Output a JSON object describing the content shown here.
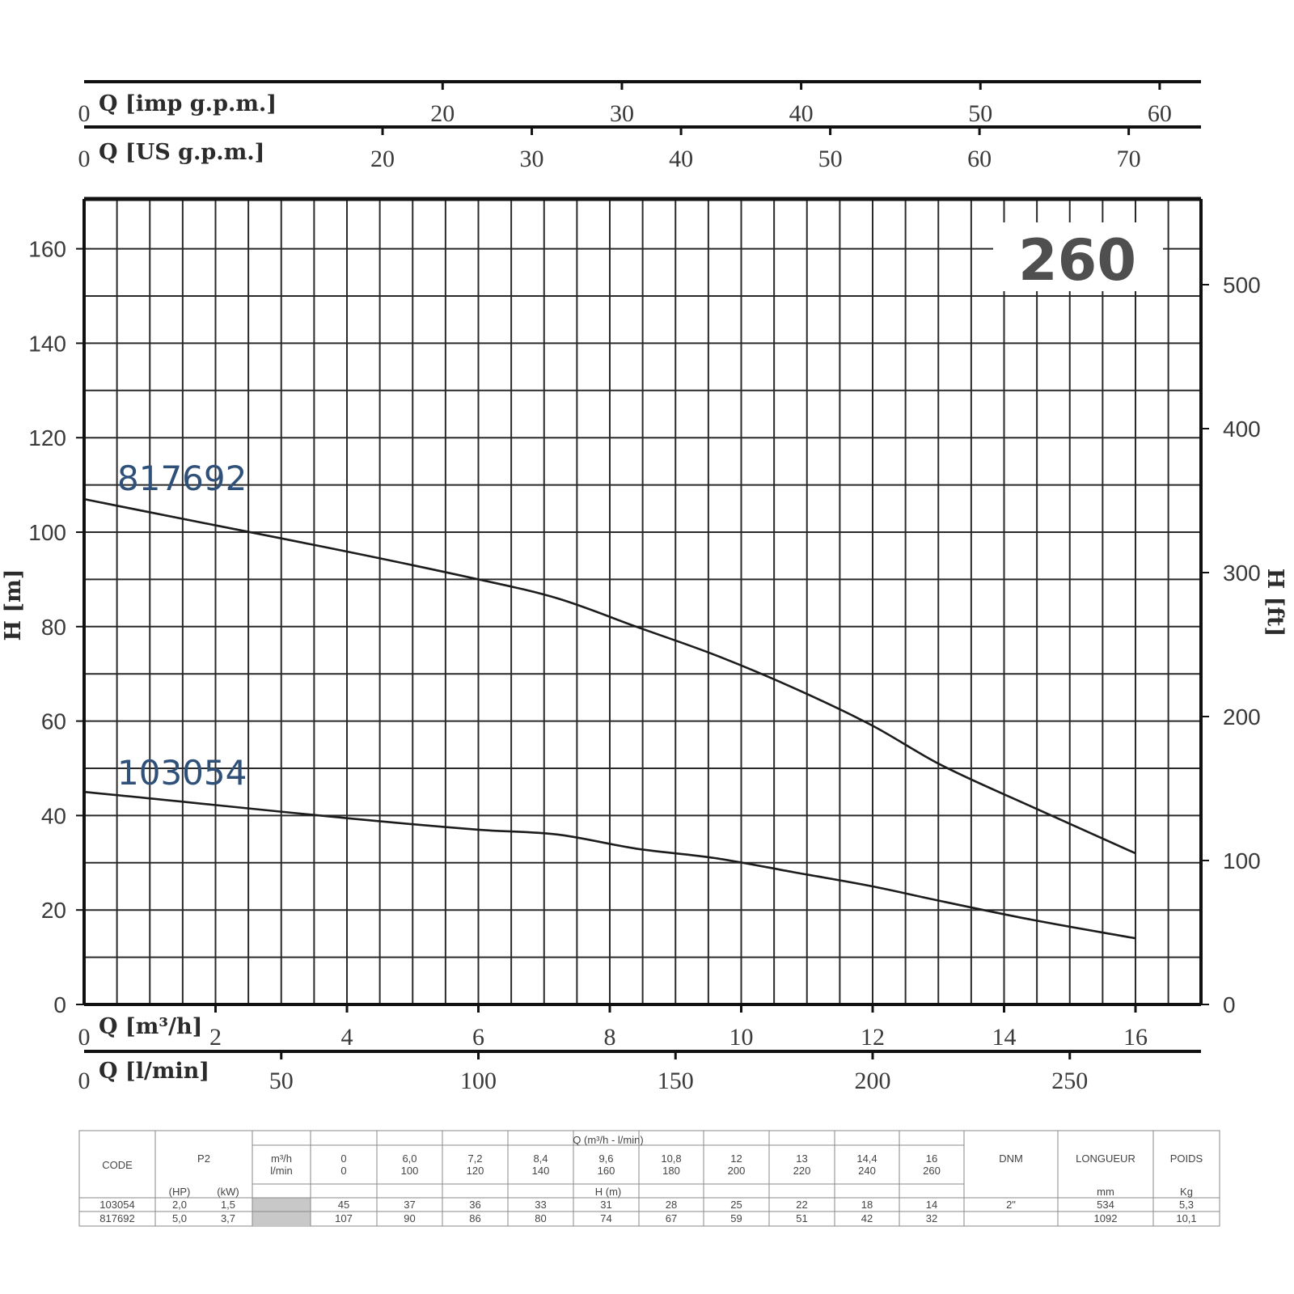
{
  "chart_data": {
    "type": "line",
    "model": "260",
    "x_axes": {
      "imp_gpm": {
        "label": "Q [imp g.p.m.]",
        "zero": "0",
        "ticks": [
          "20",
          "30",
          "40",
          "50",
          "60"
        ]
      },
      "us_gpm": {
        "label": "Q [US g.p.m.]",
        "zero": "0",
        "ticks": [
          "20",
          "30",
          "40",
          "50",
          "60",
          "70"
        ]
      },
      "m3h": {
        "label": "Q [m³/h]",
        "zero": "0",
        "ticks": [
          "2",
          "4",
          "6",
          "8",
          "10",
          "12",
          "14",
          "16"
        ]
      },
      "lmin": {
        "label": "Q [l/min]",
        "zero": "0",
        "ticks": [
          "50",
          "100",
          "150",
          "200",
          "250"
        ]
      }
    },
    "y_left": {
      "label": "H [m]",
      "ticks": [
        "0",
        "20",
        "40",
        "60",
        "80",
        "100",
        "120",
        "140",
        "160"
      ]
    },
    "y_right": {
      "label": "H [ft]",
      "ticks": [
        "0",
        "100",
        "200",
        "300",
        "400",
        "500"
      ]
    },
    "xlim": [
      0,
      17
    ],
    "ylim": [
      0,
      170
    ],
    "x": [
      0,
      6,
      7.2,
      8.4,
      9.6,
      10.8,
      12,
      13,
      14.4,
      16
    ],
    "series": [
      {
        "name": "817692",
        "values": [
          107,
          90,
          86,
          80,
          74,
          67,
          59,
          51,
          42,
          32
        ]
      },
      {
        "name": "103054",
        "values": [
          45,
          37,
          36,
          33,
          31,
          28,
          25,
          22,
          18,
          14
        ]
      }
    ],
    "grid": true
  },
  "table": {
    "code_header": "CODE",
    "p2_header": "P2",
    "q_header": "Q (m³/h - l/min)",
    "unit_m3h": "m³/h",
    "unit_lmin": "l/min",
    "q_m3h": [
      "0",
      "6,0",
      "7,2",
      "8,4",
      "9,6",
      "10,8",
      "12",
      "13",
      "14,4",
      "16"
    ],
    "q_lmin": [
      "0",
      "100",
      "120",
      "140",
      "160",
      "180",
      "200",
      "220",
      "240",
      "260"
    ],
    "hp_header": "(HP)",
    "kw_header": "(kW)",
    "h_header": "H (m)",
    "dnm_header": "DNM",
    "length_header": "LONGUEUR",
    "weight_header": "POIDS",
    "length_unit": "mm",
    "weight_unit": "Kg",
    "dnm_value": "2\"",
    "rows": [
      {
        "code": "103054",
        "hp": "2,0",
        "kw": "1,5",
        "h": [
          "45",
          "37",
          "36",
          "33",
          "31",
          "28",
          "25",
          "22",
          "18",
          "14"
        ],
        "length": "534",
        "weight": "5,3"
      },
      {
        "code": "817692",
        "hp": "5,0",
        "kw": "3,7",
        "h": [
          "107",
          "90",
          "86",
          "80",
          "74",
          "67",
          "59",
          "51",
          "42",
          "32"
        ],
        "length": "1092",
        "weight": "10,1"
      }
    ]
  }
}
